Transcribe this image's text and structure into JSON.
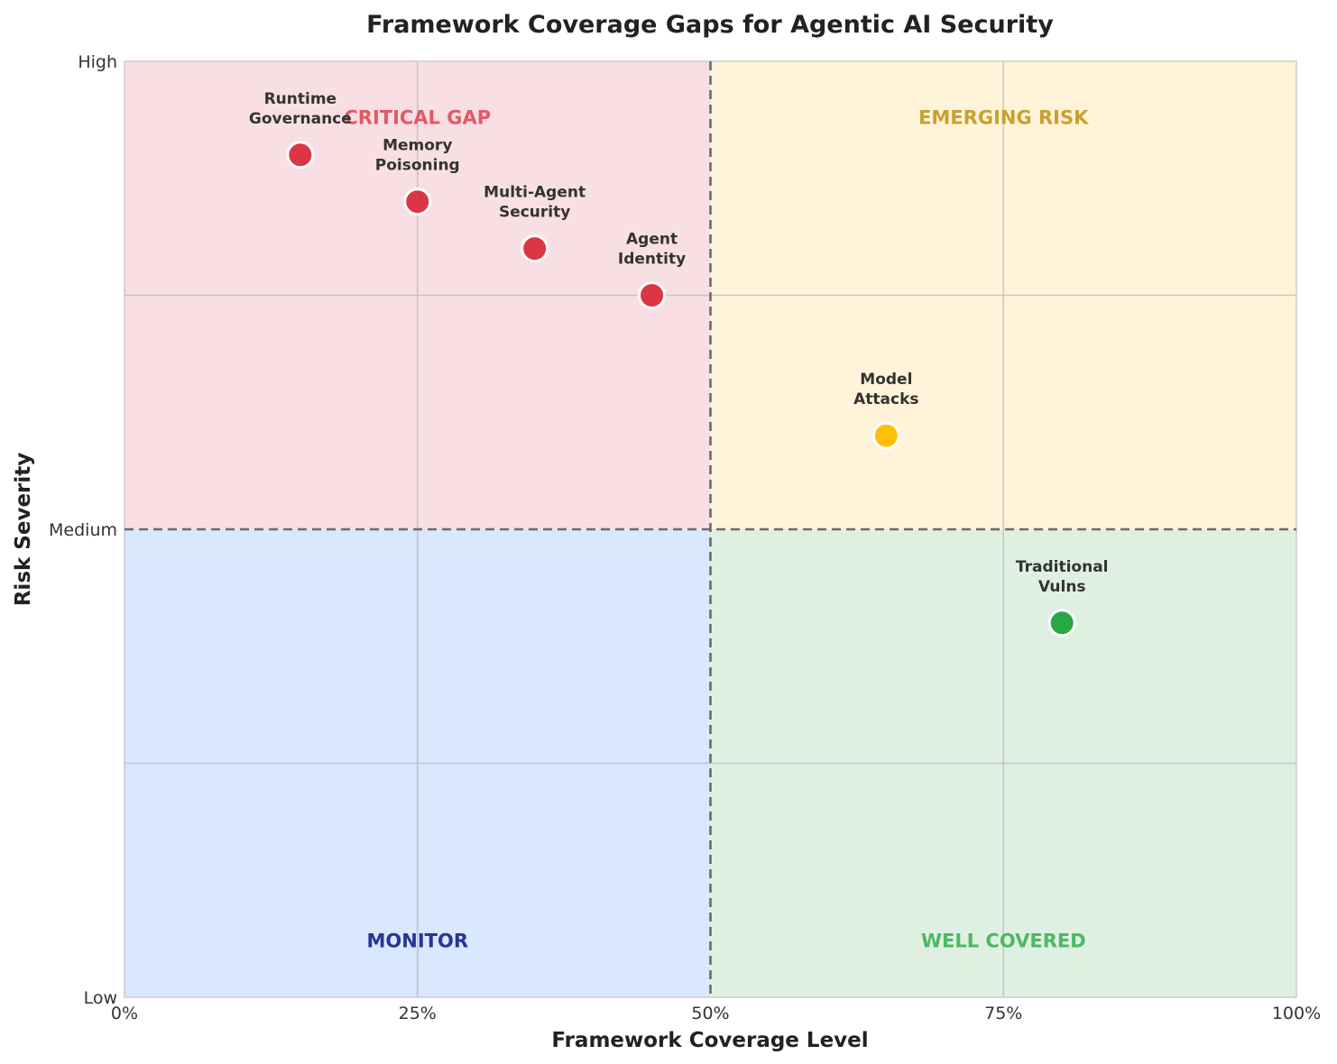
{
  "chart_data": {
    "type": "scatter",
    "title": "Framework Coverage Gaps for Agentic AI Security",
    "xlabel": "Framework Coverage Level",
    "ylabel": "Risk Severity",
    "xlim": [
      0,
      100
    ],
    "ylim": [
      0,
      1
    ],
    "x_ticks": [
      {
        "value": 0,
        "label": "0%"
      },
      {
        "value": 25,
        "label": "25%"
      },
      {
        "value": 50,
        "label": "50%"
      },
      {
        "value": 75,
        "label": "75%"
      },
      {
        "value": 100,
        "label": "100%"
      }
    ],
    "y_ticks": [
      {
        "value": 0,
        "label": "Low"
      },
      {
        "value": 0.5,
        "label": "Medium"
      },
      {
        "value": 1,
        "label": "High"
      }
    ],
    "y_gridlines": [
      0.25,
      0.75
    ],
    "grid": true,
    "thresholds": {
      "x": 50,
      "y": 0.5
    },
    "quadrants": [
      {
        "label": "CRITICAL GAP",
        "x_range": [
          0,
          50
        ],
        "y_range": [
          0.5,
          1
        ],
        "fill": "#f8dfe3",
        "label_color": "#e05a66",
        "label_x": 25,
        "label_y": 0.94
      },
      {
        "label": "EMERGING RISK",
        "x_range": [
          50,
          100
        ],
        "y_range": [
          0.5,
          1
        ],
        "fill": "#fff4d9",
        "label_color": "#c9a030",
        "label_x": 75,
        "label_y": 0.94
      },
      {
        "label": "MONITOR",
        "x_range": [
          0,
          50
        ],
        "y_range": [
          0,
          0.5
        ],
        "fill": "#d9e7ff",
        "label_color": "#283593",
        "label_x": 25,
        "label_y": 0.06
      },
      {
        "label": "WELL COVERED",
        "x_range": [
          50,
          100
        ],
        "y_range": [
          0,
          0.5
        ],
        "fill": "#dff0e2",
        "label_color": "#4cb864",
        "label_x": 75,
        "label_y": 0.06
      }
    ],
    "points": [
      {
        "lines": [
          "Runtime",
          "Governance"
        ],
        "x": 15,
        "y": 0.9,
        "color": "#dc3545"
      },
      {
        "lines": [
          "Memory",
          "Poisoning"
        ],
        "x": 25,
        "y": 0.85,
        "color": "#dc3545"
      },
      {
        "lines": [
          "Multi-Agent",
          "Security"
        ],
        "x": 35,
        "y": 0.8,
        "color": "#dc3545"
      },
      {
        "lines": [
          "Agent",
          "Identity"
        ],
        "x": 45,
        "y": 0.75,
        "color": "#dc3545"
      },
      {
        "lines": [
          "Model",
          "Attacks"
        ],
        "x": 65,
        "y": 0.6,
        "color": "#ffc107"
      },
      {
        "lines": [
          "Traditional",
          "Vulns"
        ],
        "x": 80,
        "y": 0.4,
        "color": "#28a745"
      }
    ]
  }
}
